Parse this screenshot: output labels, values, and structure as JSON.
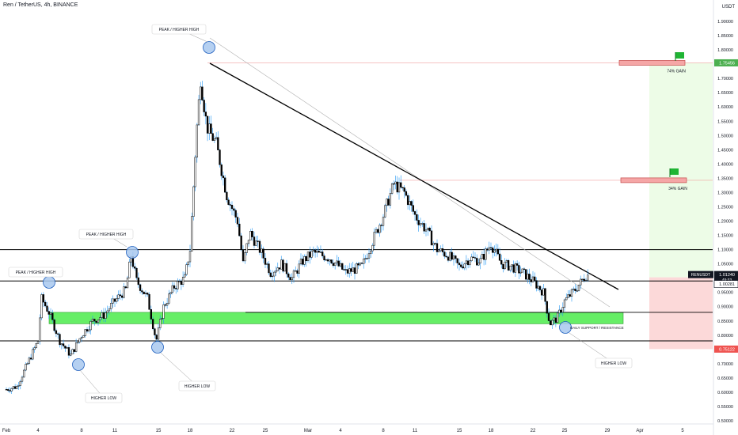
{
  "header": {
    "symbol_line": "Ren / TetherUS, 4h, BINANCE",
    "currency": "USDT"
  },
  "chart_data": {
    "type": "candlestick",
    "title": "Ren / TetherUS, 4h, BINANCE",
    "ylabel": "USDT",
    "ylim": [
      0.5,
      1.9
    ],
    "x_axis": {
      "tick_labels": [
        "Feb",
        "4",
        "8",
        "11",
        "15",
        "18",
        "22",
        "25",
        "Mar",
        "4",
        "8",
        "11",
        "15",
        "18",
        "22",
        "25",
        "29",
        "Apr",
        "5"
      ],
      "tick_days": [
        1,
        4,
        8,
        11,
        15,
        18,
        22,
        25,
        29,
        32,
        36,
        39,
        43,
        46,
        50,
        53,
        57,
        60,
        64
      ],
      "range_days": [
        1,
        67
      ]
    },
    "y_ticks": [
      0.5,
      0.55,
      0.6,
      0.65,
      0.7,
      0.75,
      0.8,
      0.85,
      0.9,
      0.95,
      1.0,
      1.05,
      1.1,
      1.15,
      1.2,
      1.25,
      1.3,
      1.35,
      1.4,
      1.45,
      1.5,
      1.55,
      1.6,
      1.65,
      1.7,
      1.75,
      1.8,
      1.85,
      1.9
    ],
    "close_path": [
      [
        1.0,
        0.61
      ],
      [
        2.0,
        0.62
      ],
      [
        3.0,
        0.7
      ],
      [
        4.0,
        0.78
      ],
      [
        4.3,
        0.93
      ],
      [
        5.0,
        0.88
      ],
      [
        6.0,
        0.78
      ],
      [
        7.0,
        0.73
      ],
      [
        8.0,
        0.8
      ],
      [
        9.0,
        0.85
      ],
      [
        10.0,
        0.87
      ],
      [
        11.0,
        0.92
      ],
      [
        12.0,
        0.96
      ],
      [
        12.5,
        1.08
      ],
      [
        13.0,
        0.99
      ],
      [
        14.0,
        0.93
      ],
      [
        14.8,
        0.78
      ],
      [
        15.5,
        0.9
      ],
      [
        16.5,
        0.97
      ],
      [
        17.5,
        1.0
      ],
      [
        18.0,
        1.1
      ],
      [
        18.6,
        1.5
      ],
      [
        19.0,
        1.7
      ],
      [
        19.6,
        1.53
      ],
      [
        20.5,
        1.47
      ],
      [
        21.5,
        1.29
      ],
      [
        22.5,
        1.2
      ],
      [
        23.0,
        1.05
      ],
      [
        23.6,
        1.16
      ],
      [
        24.5,
        1.1
      ],
      [
        25.5,
        1.02
      ],
      [
        26.5,
        1.05
      ],
      [
        27.5,
        1.0
      ],
      [
        28.5,
        1.06
      ],
      [
        29.5,
        1.09
      ],
      [
        31.0,
        1.07
      ],
      [
        32.5,
        1.02
      ],
      [
        34.0,
        1.04
      ],
      [
        35.0,
        1.13
      ],
      [
        36.0,
        1.22
      ],
      [
        37.0,
        1.33
      ],
      [
        38.0,
        1.3
      ],
      [
        39.0,
        1.22
      ],
      [
        40.0,
        1.17
      ],
      [
        41.0,
        1.1
      ],
      [
        42.0,
        1.08
      ],
      [
        43.0,
        1.04
      ],
      [
        44.0,
        1.07
      ],
      [
        45.0,
        1.06
      ],
      [
        46.0,
        1.12
      ],
      [
        47.0,
        1.05
      ],
      [
        48.0,
        1.04
      ],
      [
        49.0,
        1.02
      ],
      [
        50.0,
        0.99
      ],
      [
        51.0,
        0.95
      ],
      [
        51.6,
        0.84
      ],
      [
        52.3,
        0.86
      ],
      [
        53.0,
        0.92
      ],
      [
        54.0,
        0.96
      ],
      [
        55.0,
        1.01
      ]
    ],
    "series": [
      {
        "name": "RENUSDT",
        "last_value": 1.0124
      }
    ],
    "annotations": {
      "peak_labels": [
        "PEAK / HIGHER HIGH",
        "PEAK / HIGHER HIGH",
        "PEAK / HIGHER HIGH"
      ],
      "low_labels": [
        "HIGHER LOW",
        "HIGHER LOW",
        "HIGHER LOW"
      ],
      "support_label": "DAILY SUPPORT / RESISTANCE",
      "gain_74": "74% GAIN",
      "gain_34": "34% GAIN"
    },
    "levels": {
      "target_1": 1.75456,
      "target_2": 1.343,
      "resistance": 1.1,
      "support_line": 0.99,
      "support_zone": [
        0.84,
        0.88
      ],
      "support_lower": 0.78,
      "stop": 0.7512,
      "entry": 1.00281,
      "current": 1.0124
    },
    "price_labels": {
      "target": "1.75456",
      "series": "RENUSDT",
      "current": "1.01240",
      "countdown": "49:33",
      "entry": "1.00281",
      "stop": "0.75122"
    },
    "colors": {
      "candle": "#000000",
      "wick": "#2196f3",
      "zone": "#66ee66",
      "profit_zone": "#edfce7",
      "loss_zone": "#fcd9d9",
      "target_box": "#f5a6a6",
      "flag": "#1fb534",
      "highlight_circle": "#a8c8ee",
      "price_tag_green": "#4caf50",
      "price_tag_red": "#ef5350",
      "dark_tag": "#131722"
    },
    "grid": false
  }
}
